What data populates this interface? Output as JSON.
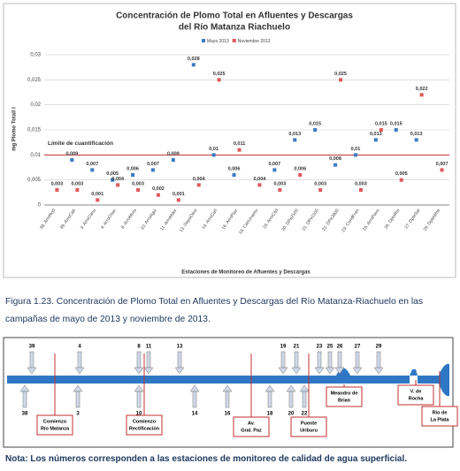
{
  "chart_data": {
    "type": "scatter",
    "title": "Concentración de Plomo Total en Afluentes y Descargas",
    "subtitle": "del Río Matanza Riachuelo",
    "y_label": "mg Plomo Total/ l",
    "x_label": "Estaciones de Monitoreo de Afluentes y Descargas",
    "categories": [
      "38. ArroRod",
      "39. ArroCab",
      "3. ArroCanu",
      "4. ArroChac",
      "8. ArroMora",
      "10. ArroAgui",
      "11. ArroMdor",
      "13. DepoOest",
      "14. ArroCañ",
      "16. ArroPlaz",
      "18. CanUnamu",
      "19. ArroCild",
      "20. DPe2100",
      "21. DPe1100",
      "22. DPe3900",
      "23. CondFren",
      "25. ArroPavo",
      "26. DptoRio",
      "27. DpteSal",
      "29. DpteWhe"
    ],
    "series": [
      {
        "name": "Mayo 2013",
        "color": "#3b7cc4",
        "values": [
          null,
          0.009,
          0.007,
          0.005,
          0.006,
          0.007,
          0.009,
          0.028,
          0.01,
          0.006,
          null,
          0.007,
          0.013,
          0.015,
          0.008,
          0.01,
          0.013,
          0.015,
          0.013,
          null
        ],
        "value_labels": [
          null,
          "0,009",
          "0,007",
          "0,005",
          "0,006",
          "0,007",
          "0,009",
          "0,028",
          "0,01",
          "0,006",
          null,
          "0,007",
          "0,013",
          "0,015",
          "0,008",
          "0,01",
          "0,013",
          "0,015",
          "0,013",
          null
        ]
      },
      {
        "name": "Noviembre 2013",
        "color": "#e0585a",
        "values": [
          0.003,
          0.003,
          0.001,
          0.004,
          0.003,
          0.002,
          0.001,
          0.004,
          0.025,
          0.011,
          0.004,
          0.003,
          0.006,
          0.003,
          0.025,
          0.003,
          0.015,
          0.005,
          0.022,
          0.007
        ],
        "value_labels": [
          "0,003",
          "0,003",
          "0,001",
          "0,004",
          "0,003",
          "0,002",
          "0,001",
          "0,004",
          "0,025",
          "0,011",
          "0,004",
          "0,003",
          "0,006",
          "0,003",
          "0,025",
          "0,003",
          "0,015",
          "0,005",
          "0,022",
          "0,007"
        ]
      }
    ],
    "ylim": [
      0,
      0.03
    ],
    "yticks": [
      0,
      {
        "value": 0.005,
        "label": "0,005"
      },
      {
        "value": 0.01,
        "label": "0,01"
      },
      {
        "value": 0.015,
        "label": "0,015"
      },
      {
        "value": 0.02,
        "label": "0,02"
      },
      {
        "value": 0.025,
        "label": "0,025"
      },
      {
        "value": 0.03,
        "label": "0,03"
      }
    ],
    "grid": true,
    "reference_line": {
      "label": "Límite de cuantificación",
      "value": 0.01,
      "color": "#c0302f"
    },
    "legend": "top"
  },
  "caption": "Figura 1.23. Concentración de Plomo Total en Afluentes y Descargas del Río Matanza-Riachuelo en las campañas de mayo de 2013 y noviembre de 2013.",
  "diagram": {
    "top_stations": [
      "39",
      "4",
      "8",
      "11",
      "13",
      "19",
      "21",
      "23",
      "25",
      "26",
      "27",
      "29"
    ],
    "bottom_stations": [
      "38",
      "3",
      "10",
      "14",
      "16",
      "18",
      "20",
      "22"
    ],
    "markers": [
      [
        "Comienzo",
        "Río Matanza"
      ],
      [
        "Comienzo",
        "Rectificación"
      ],
      [
        "Av.",
        "Gral. Paz"
      ],
      [
        "Puente",
        "Uriburu"
      ],
      [
        "Meandro de",
        "Brian"
      ],
      [
        "V. de",
        "Rocha"
      ],
      [
        "Río de",
        "La Plata"
      ]
    ]
  },
  "note": "Nota: Los números corresponden a las estaciones de monitoreo de calidad de agua superficial."
}
